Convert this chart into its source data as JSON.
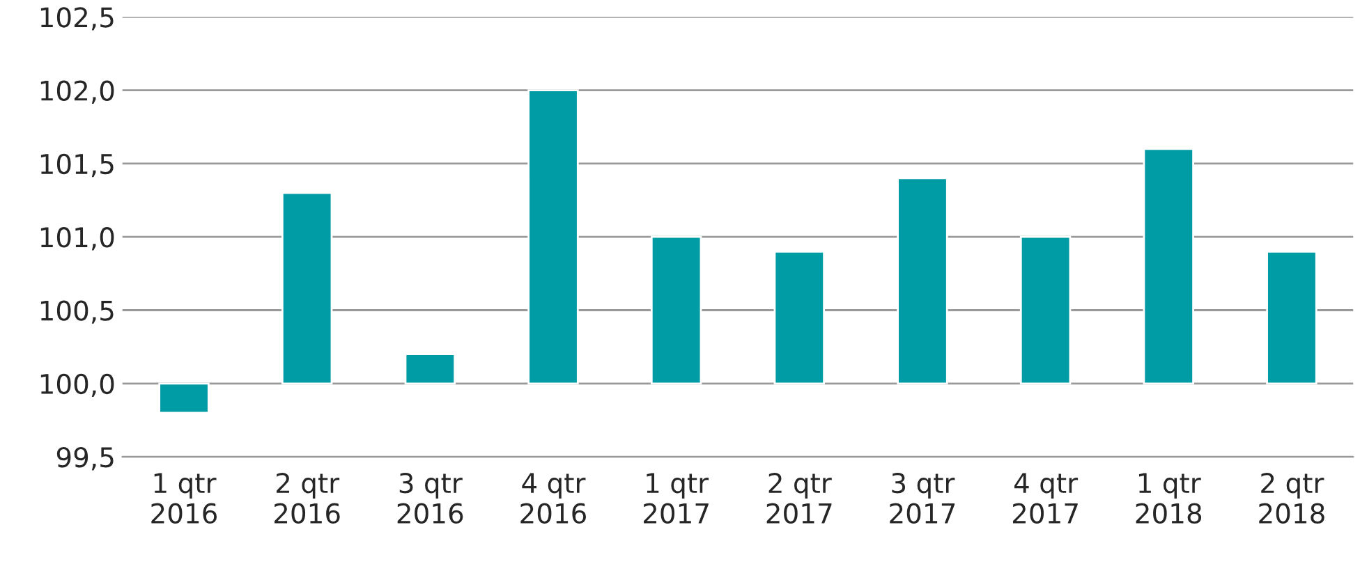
{
  "chart_data": {
    "type": "bar",
    "categories": [
      "1 qtr\n2016",
      "2 qtr\n2016",
      "3 qtr\n2016",
      "4 qtr\n2016",
      "1 qtr\n2017",
      "2 qtr\n2017",
      "3 qtr\n2017",
      "4 qtr\n2017",
      "1 qtr\n2018",
      "2 qtr\n2018"
    ],
    "base": [
      100,
      100,
      100,
      100,
      100,
      100,
      100,
      100,
      100,
      100
    ],
    "values": [
      -0.2,
      1.3,
      0.2,
      2.0,
      1.0,
      0.9,
      1.4,
      1.0,
      1.6,
      0.9
    ],
    "color": "#009ca6",
    "ylim": [
      99.5,
      102.5
    ],
    "yticks": [
      {
        "value": 99.5,
        "label": "99,5"
      },
      {
        "value": 100.0,
        "label": "100,0"
      },
      {
        "value": 100.5,
        "label": "100,5"
      },
      {
        "value": 101.0,
        "label": "101,0"
      },
      {
        "value": 101.5,
        "label": "101,5"
      },
      {
        "value": 102.0,
        "label": "102,0"
      },
      {
        "value": 102.5,
        "label": "102,5"
      }
    ],
    "grid": "y"
  }
}
